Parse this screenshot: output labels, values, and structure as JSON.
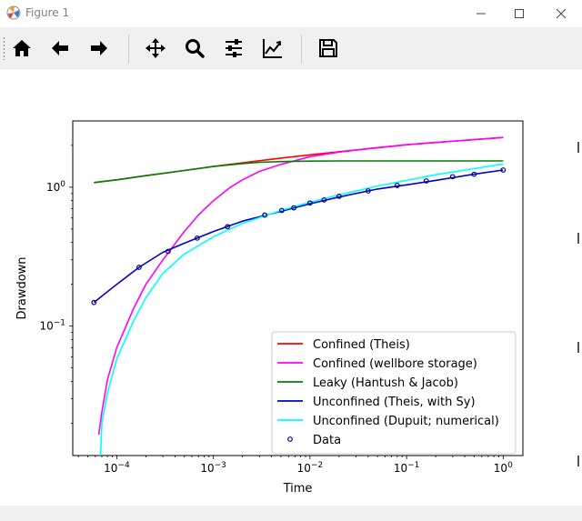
{
  "window": {
    "title": "Figure 1",
    "controls": [
      "minimize",
      "maximize",
      "close"
    ]
  },
  "toolbar": {
    "buttons": [
      {
        "name": "home",
        "icon": "home-icon"
      },
      {
        "name": "back",
        "icon": "arrow-left-icon"
      },
      {
        "name": "forward",
        "icon": "arrow-right-icon"
      },
      {
        "name": "pan",
        "icon": "move-icon"
      },
      {
        "name": "zoom",
        "icon": "magnifier-icon"
      },
      {
        "name": "subplots",
        "icon": "sliders-icon"
      },
      {
        "name": "customize",
        "icon": "line-chart-icon"
      },
      {
        "name": "save",
        "icon": "floppy-disk-icon"
      }
    ]
  },
  "chart_data": {
    "type": "line",
    "xscale": "log",
    "yscale": "log",
    "xlabel": "Time",
    "ylabel": "Drawdown",
    "xlim": [
      3.5e-05,
      1.6
    ],
    "ylim": [
      0.0117,
      3.0
    ],
    "xticks": [
      {
        "value": 0.0001,
        "base": "10",
        "exp": "−4"
      },
      {
        "value": 0.001,
        "base": "10",
        "exp": "−3"
      },
      {
        "value": 0.01,
        "base": "10",
        "exp": "−2"
      },
      {
        "value": 0.1,
        "base": "10",
        "exp": "−1"
      },
      {
        "value": 1,
        "base": "10",
        "exp": "0"
      }
    ],
    "yticks": [
      {
        "value": 0.1,
        "base": "10",
        "exp": "−1"
      },
      {
        "value": 1,
        "base": "10",
        "exp": "0"
      }
    ],
    "legend_position": "lower-right",
    "series": [
      {
        "name": "Confined (Theis)",
        "color": "#ff0000",
        "kind": "line",
        "x": [
          5.8e-05,
          0.0001,
          0.0002,
          0.0005,
          0.001,
          0.002,
          0.005,
          0.01,
          0.02,
          0.05,
          0.1,
          0.2,
          0.5,
          1.0
        ],
        "y": [
          1.08,
          1.13,
          1.21,
          1.32,
          1.41,
          1.5,
          1.62,
          1.71,
          1.8,
          1.92,
          2.02,
          2.1,
          2.2,
          2.28
        ]
      },
      {
        "name": "Confined (wellbore storage)",
        "color": "#ff00ff",
        "kind": "line",
        "x": [
          6.5e-05,
          7e-05,
          8e-05,
          0.0001,
          0.00015,
          0.0002,
          0.0003,
          0.0005,
          0.0007,
          0.001,
          0.0015,
          0.002,
          0.003,
          0.005,
          0.01,
          0.02,
          0.05,
          0.1,
          0.2,
          0.5,
          1.0
        ],
        "y": [
          0.0165,
          0.024,
          0.041,
          0.07,
          0.135,
          0.2,
          0.3,
          0.48,
          0.63,
          0.8,
          1.0,
          1.13,
          1.3,
          1.46,
          1.66,
          1.79,
          1.93,
          2.02,
          2.1,
          2.2,
          2.28
        ]
      },
      {
        "name": "Leaky (Hantush & Jacob)",
        "color": "#008000",
        "kind": "line",
        "x": [
          5.8e-05,
          0.0001,
          0.0002,
          0.0005,
          0.001,
          0.002,
          0.003,
          0.005,
          0.01,
          0.02,
          0.05,
          0.1,
          1.0
        ],
        "y": [
          1.08,
          1.13,
          1.21,
          1.32,
          1.41,
          1.48,
          1.51,
          1.53,
          1.54,
          1.545,
          1.545,
          1.545,
          1.545
        ]
      },
      {
        "name": "Unconfined (Theis, with Sy)",
        "color": "#0000cd",
        "kind": "line",
        "x": [
          5.8e-05,
          0.0001,
          0.00017,
          0.0003,
          0.0005,
          0.001,
          0.002,
          0.005,
          0.01,
          0.02,
          0.05,
          0.1,
          0.2,
          0.5,
          1.0
        ],
        "y": [
          0.148,
          0.2,
          0.265,
          0.34,
          0.395,
          0.48,
          0.57,
          0.67,
          0.76,
          0.85,
          0.97,
          1.04,
          1.12,
          1.24,
          1.33
        ]
      },
      {
        "name": "Unconfined (Dupuit; numerical)",
        "color": "#00ffff",
        "kind": "line",
        "x": [
          6.8e-05,
          7e-05,
          8e-05,
          0.0001,
          0.00015,
          0.0002,
          0.0003,
          0.0005,
          0.001,
          0.002,
          0.005,
          0.01,
          0.02,
          0.05,
          0.1,
          0.2,
          0.5,
          1.0
        ],
        "y": [
          0.0117,
          0.02,
          0.033,
          0.058,
          0.11,
          0.16,
          0.24,
          0.33,
          0.44,
          0.55,
          0.68,
          0.78,
          0.88,
          1.02,
          1.12,
          1.23,
          1.36,
          1.47
        ]
      },
      {
        "name": "Data",
        "color": "#000080",
        "kind": "scatter",
        "x": [
          5.8e-05,
          0.00017,
          0.00034,
          0.00068,
          0.0014,
          0.0034,
          0.0051,
          0.0068,
          0.01,
          0.014,
          0.02,
          0.04,
          0.08,
          0.16,
          0.3,
          0.5,
          1.0
        ],
        "y": [
          0.148,
          0.265,
          0.345,
          0.43,
          0.52,
          0.63,
          0.68,
          0.71,
          0.77,
          0.81,
          0.86,
          0.94,
          1.03,
          1.11,
          1.19,
          1.24,
          1.33
        ]
      }
    ]
  }
}
